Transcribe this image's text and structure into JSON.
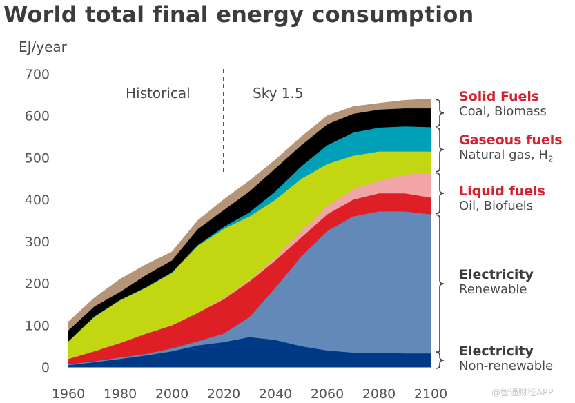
{
  "title": "World total final energy consumption",
  "unit_label": "EJ/year",
  "watermark": "@智通财经APP",
  "chart_data": {
    "type": "area",
    "stacked": true,
    "title": "World total final energy consumption",
    "ylabel": "EJ/year",
    "xlabel": "",
    "xlim": [
      1960,
      2100
    ],
    "ylim": [
      0,
      700
    ],
    "x_ticks": [
      "1960",
      "1980",
      "2000",
      "2020",
      "2040",
      "2060",
      "2080",
      "2100"
    ],
    "y_ticks": [
      "0",
      "100",
      "200",
      "300",
      "400",
      "500",
      "600",
      "700"
    ],
    "grid": false,
    "annotations": [
      {
        "text": "Historical",
        "position": "left of 2020"
      },
      {
        "text": "Sky 1.5",
        "position": "right of 2020"
      },
      {
        "type": "dashed-vertical-line",
        "x": 2020
      }
    ],
    "x": [
      1960,
      1970,
      1980,
      1990,
      2000,
      2010,
      2020,
      2030,
      2040,
      2050,
      2060,
      2070,
      2080,
      2090,
      2100
    ],
    "series": [
      {
        "name": "Electricity Non-renewable",
        "color": "#003a87",
        "values": [
          5,
          12,
          20,
          28,
          38,
          52,
          60,
          72,
          65,
          50,
          40,
          35,
          35,
          33,
          33
        ]
      },
      {
        "name": "Electricity Renewable",
        "color": "#6389b8",
        "values": [
          2,
          2,
          3,
          4,
          7,
          10,
          20,
          48,
          125,
          215,
          285,
          325,
          337,
          339,
          332
        ]
      },
      {
        "name": "Liquid fuels - Oil",
        "color": "#de1f26",
        "values": [
          13,
          24,
          35,
          48,
          55,
          68,
          82,
          85,
          65,
          45,
          40,
          40,
          43,
          43,
          40
        ]
      },
      {
        "name": "Liquid fuels - Biofuels",
        "color": "#f2a5a6",
        "values": [
          0,
          0,
          0,
          0,
          0,
          0,
          3,
          3,
          7,
          15,
          20,
          25,
          30,
          45,
          60
        ]
      },
      {
        "name": "Gaseous fuels - Natural gas",
        "color": "#c2d712",
        "values": [
          42,
          82,
          102,
          110,
          125,
          160,
          165,
          152,
          138,
          125,
          100,
          80,
          70,
          55,
          50
        ]
      },
      {
        "name": "Gaseous fuels - H2",
        "color": "#00a0b8",
        "values": [
          0,
          1,
          1,
          1,
          2,
          2,
          5,
          10,
          20,
          30,
          45,
          55,
          57,
          60,
          58
        ]
      },
      {
        "name": "Solid fuels - Coal",
        "color": "#000000",
        "values": [
          26,
          24,
          19,
          29,
          28,
          38,
          40,
          50,
          55,
          50,
          50,
          45,
          43,
          43,
          45
        ]
      },
      {
        "name": "Solid fuels - Biomass",
        "color": "#b59478",
        "values": [
          20,
          20,
          30,
          25,
          20,
          20,
          25,
          25,
          20,
          20,
          20,
          17,
          15,
          19,
          22
        ]
      }
    ]
  },
  "legend": [
    {
      "heading": "Solid Fuels",
      "sub": "Coal, Biomass",
      "style": "red"
    },
    {
      "heading": "Gaseous fuels",
      "sub": "Natural gas, H",
      "sub_subscript": "2",
      "style": "red"
    },
    {
      "heading": "Liquid fuels",
      "sub": "Oil, Biofuels",
      "style": "red"
    },
    {
      "heading": "Electricity",
      "sub": "Renewable",
      "style": "dark"
    },
    {
      "heading": "Electricity",
      "sub": "Non-renewable",
      "style": "dark"
    }
  ]
}
